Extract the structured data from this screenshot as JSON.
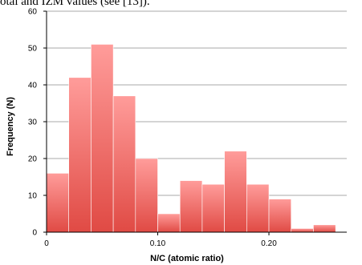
{
  "caption_fragment": "otal and IZM values (see [13]).",
  "chart_data": {
    "type": "bar",
    "xlabel": "N/C (atomic ratio)",
    "ylabel": "Frequency (N)",
    "x_tick_labels": [
      "0",
      "0.10",
      "0.20"
    ],
    "x_ticks": [
      0,
      0.1,
      0.2
    ],
    "y_ticks": [
      0,
      10,
      20,
      30,
      40,
      50,
      60
    ],
    "ylim": [
      0,
      60
    ],
    "xlim": [
      0,
      0.27
    ],
    "bin_width": 0.02,
    "bins": [
      {
        "x": 0.0,
        "value": 16
      },
      {
        "x": 0.02,
        "value": 42
      },
      {
        "x": 0.04,
        "value": 51
      },
      {
        "x": 0.06,
        "value": 37
      },
      {
        "x": 0.08,
        "value": 20
      },
      {
        "x": 0.1,
        "value": 5
      },
      {
        "x": 0.12,
        "value": 14
      },
      {
        "x": 0.14,
        "value": 13
      },
      {
        "x": 0.16,
        "value": 22
      },
      {
        "x": 0.18,
        "value": 13
      },
      {
        "x": 0.2,
        "value": 9
      },
      {
        "x": 0.22,
        "value": 1
      },
      {
        "x": 0.24,
        "value": 2
      }
    ],
    "grid": true,
    "bar_color_top": "#ff9c9a",
    "bar_color_bottom": "#e04a44"
  }
}
